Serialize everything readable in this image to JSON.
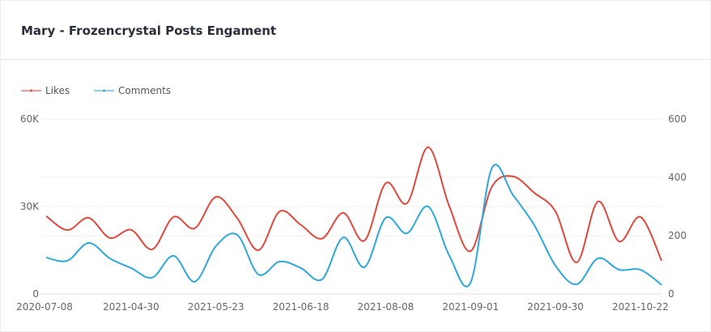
{
  "title": "Mary - Frozencrystal Posts Engament",
  "chart_data": {
    "type": "line",
    "title": "Mary - Frozencrystal Posts Engament",
    "smooth": true,
    "legend_position": "top-left",
    "grid": true,
    "x_tick_labels": [
      "2020-07-08",
      "2021-04-30",
      "2021-05-23",
      "2021-06-18",
      "2021-08-08",
      "2021-09-01",
      "2021-09-30",
      "2021-10-22"
    ],
    "x_tick_every": 4,
    "point_count": 30,
    "y_left": {
      "ylim": [
        0,
        60000
      ],
      "ticks": [
        0,
        30000,
        60000
      ],
      "tick_labels": [
        "0",
        "30K",
        "60K"
      ]
    },
    "y_right": {
      "ylim": [
        0,
        600
      ],
      "ticks": [
        0,
        200,
        400,
        600
      ],
      "tick_labels": [
        "0",
        "200",
        "400",
        "600"
      ]
    },
    "series": [
      {
        "name": "Likes",
        "axis": "left",
        "color": "#e0483e",
        "values": [
          26700,
          21900,
          26100,
          19200,
          22000,
          15300,
          26400,
          22500,
          33300,
          26000,
          15000,
          28300,
          23700,
          19000,
          27800,
          18300,
          38000,
          31100,
          50300,
          30000,
          14700,
          36700,
          40300,
          34700,
          28300,
          10800,
          31700,
          18000,
          26400,
          11400
        ]
      },
      {
        "name": "Comments",
        "axis": "right",
        "color": "#2ea7d9",
        "values": [
          125,
          114,
          175,
          122,
          89,
          56,
          131,
          42,
          164,
          203,
          67,
          111,
          89,
          50,
          194,
          92,
          261,
          208,
          300,
          131,
          39,
          431,
          339,
          236,
          97,
          33,
          122,
          83,
          83,
          31
        ]
      }
    ]
  }
}
